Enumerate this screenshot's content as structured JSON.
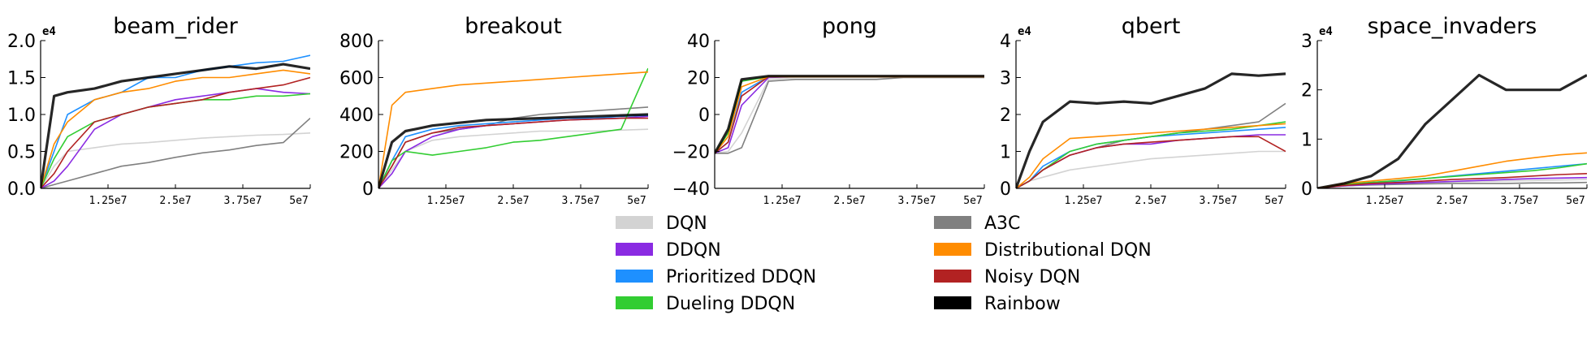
{
  "chart_data": {
    "type": "line",
    "xlim": [
      0,
      50000000
    ],
    "x_tick_labels": [
      "1.25e7",
      "2.5e7",
      "3.75e7",
      "5e7"
    ],
    "x_tick_values": [
      12500000,
      25000000,
      37500000,
      50000000
    ],
    "grid": false,
    "legend": {
      "position": "bottom-center",
      "columns": 2,
      "entries": [
        {
          "name": "DQN",
          "color": "#d3d3d3"
        },
        {
          "name": "A3C",
          "color": "#808080"
        },
        {
          "name": "DDQN",
          "color": "#8a2be2"
        },
        {
          "name": "Distributional DQN",
          "color": "#ff8c00"
        },
        {
          "name": "Prioritized DDQN",
          "color": "#1e90ff"
        },
        {
          "name": "Noisy DQN",
          "color": "#b22222"
        },
        {
          "name": "Dueling DDQN",
          "color": "#32cd32"
        },
        {
          "name": "Rainbow",
          "color": "#000000"
        }
      ]
    },
    "x_points": [
      0,
      2500000,
      5000000,
      10000000,
      15000000,
      20000000,
      25000000,
      30000000,
      35000000,
      40000000,
      45000000,
      50000000
    ],
    "panels": [
      {
        "title": "beam_rider",
        "multiplier": "e4",
        "ylim": [
          0,
          2.0
        ],
        "y_tick_labels": [
          "0.0",
          "0.5",
          "1.0",
          "1.5",
          "2.0"
        ],
        "y_tick_values": [
          0,
          0.5,
          1.0,
          1.5,
          2.0
        ],
        "series": [
          {
            "name": "DQN",
            "values": [
              0,
              0.3,
              0.5,
              0.55,
              0.6,
              0.62,
              0.65,
              0.68,
              0.7,
              0.72,
              0.73,
              0.75
            ]
          },
          {
            "name": "A3C",
            "values": [
              0,
              0.05,
              0.1,
              0.2,
              0.3,
              0.35,
              0.42,
              0.48,
              0.52,
              0.58,
              0.62,
              0.95
            ]
          },
          {
            "name": "DDQN",
            "values": [
              0,
              0.1,
              0.3,
              0.8,
              1.0,
              1.1,
              1.2,
              1.25,
              1.3,
              1.35,
              1.3,
              1.28
            ]
          },
          {
            "name": "Distributional DQN",
            "values": [
              0,
              0.6,
              0.9,
              1.2,
              1.3,
              1.35,
              1.45,
              1.5,
              1.5,
              1.55,
              1.6,
              1.55
            ]
          },
          {
            "name": "Prioritized DDQN",
            "values": [
              0,
              0.5,
              1.0,
              1.2,
              1.3,
              1.5,
              1.5,
              1.6,
              1.65,
              1.7,
              1.72,
              1.8
            ]
          },
          {
            "name": "Noisy DQN",
            "values": [
              0,
              0.2,
              0.5,
              0.9,
              1.0,
              1.1,
              1.15,
              1.2,
              1.3,
              1.35,
              1.4,
              1.5
            ]
          },
          {
            "name": "Dueling DDQN",
            "values": [
              0,
              0.4,
              0.7,
              0.9,
              1.0,
              1.1,
              1.15,
              1.2,
              1.2,
              1.25,
              1.25,
              1.28
            ]
          },
          {
            "name": "Rainbow",
            "values": [
              0,
              1.25,
              1.3,
              1.35,
              1.45,
              1.5,
              1.55,
              1.6,
              1.65,
              1.62,
              1.68,
              1.62
            ]
          }
        ]
      },
      {
        "title": "breakout",
        "multiplier": "",
        "ylim": [
          0,
          800
        ],
        "y_tick_labels": [
          "0",
          "200",
          "400",
          "600",
          "800"
        ],
        "y_tick_values": [
          0,
          200,
          400,
          600,
          800
        ],
        "series": [
          {
            "name": "DQN",
            "values": [
              0,
              100,
              200,
              260,
              280,
              290,
              300,
              310,
              310,
              310,
              315,
              320
            ]
          },
          {
            "name": "A3C",
            "values": [
              0,
              120,
              250,
              300,
              320,
              340,
              380,
              400,
              410,
              420,
              430,
              440
            ]
          },
          {
            "name": "DDQN",
            "values": [
              0,
              80,
              200,
              280,
              320,
              340,
              350,
              360,
              370,
              375,
              380,
              390
            ]
          },
          {
            "name": "Distributional DQN",
            "values": [
              0,
              450,
              520,
              540,
              560,
              570,
              580,
              590,
              600,
              610,
              620,
              630
            ]
          },
          {
            "name": "Prioritized DDQN",
            "values": [
              0,
              150,
              280,
              320,
              340,
              350,
              360,
              370,
              380,
              380,
              390,
              395
            ]
          },
          {
            "name": "Noisy DQN",
            "values": [
              0,
              120,
              250,
              300,
              330,
              340,
              350,
              360,
              370,
              375,
              380,
              380
            ]
          },
          {
            "name": "Dueling DDQN",
            "values": [
              0,
              150,
              200,
              180,
              200,
              220,
              250,
              260,
              280,
              300,
              320,
              650
            ]
          },
          {
            "name": "Rainbow",
            "values": [
              0,
              250,
              310,
              340,
              355,
              370,
              375,
              380,
              385,
              390,
              395,
              400
            ]
          }
        ]
      },
      {
        "title": "pong",
        "multiplier": "",
        "ylim": [
          -40,
          40
        ],
        "y_tick_labels": [
          "−40",
          "−20",
          "0",
          "20",
          "40"
        ],
        "y_tick_values": [
          -40,
          -20,
          0,
          20,
          40
        ],
        "series": [
          {
            "name": "DQN",
            "values": [
              -21,
              -20,
              -10,
              19,
              20,
              20,
              20,
              20,
              20,
              20,
              20,
              20
            ]
          },
          {
            "name": "A3C",
            "values": [
              -21,
              -21,
              -18,
              18,
              19,
              19,
              19,
              19,
              20,
              20,
              20,
              20
            ]
          },
          {
            "name": "DDQN",
            "values": [
              -21,
              -18,
              5,
              20,
              20.5,
              20.5,
              20.5,
              20.5,
              20.5,
              20.5,
              20.5,
              20.5
            ]
          },
          {
            "name": "Distributional DQN",
            "values": [
              -21,
              -12,
              15,
              20.5,
              20.5,
              20.5,
              20.5,
              20.5,
              20.5,
              20.5,
              20.5,
              20.5
            ]
          },
          {
            "name": "Prioritized DDQN",
            "values": [
              -21,
              -15,
              12,
              20.5,
              20.5,
              20.5,
              20.5,
              20.5,
              20.5,
              20.5,
              20.5,
              20.5
            ]
          },
          {
            "name": "Noisy DQN",
            "values": [
              -21,
              -15,
              10,
              20.5,
              20.5,
              20.5,
              20.5,
              20.5,
              20.5,
              20.5,
              20.5,
              20.5
            ]
          },
          {
            "name": "Dueling DDQN",
            "values": [
              -21,
              -10,
              18,
              20.5,
              20.5,
              20.5,
              20.5,
              20.5,
              20.5,
              20.5,
              20.5,
              20.5
            ]
          },
          {
            "name": "Rainbow",
            "values": [
              -21,
              -8,
              19,
              20.8,
              20.8,
              20.8,
              20.8,
              20.8,
              20.8,
              20.8,
              20.8,
              20.8
            ]
          }
        ]
      },
      {
        "title": "qbert",
        "multiplier": "e4",
        "ylim": [
          0,
          4
        ],
        "y_tick_labels": [
          "0",
          "1",
          "2",
          "3",
          "4"
        ],
        "y_tick_values": [
          0,
          1,
          2,
          3,
          4
        ],
        "series": [
          {
            "name": "DQN",
            "values": [
              0,
              0.2,
              0.3,
              0.5,
              0.6,
              0.7,
              0.8,
              0.85,
              0.9,
              0.95,
              1.0,
              1.0
            ]
          },
          {
            "name": "A3C",
            "values": [
              0,
              0.2,
              0.5,
              0.9,
              1.1,
              1.3,
              1.4,
              1.5,
              1.6,
              1.7,
              1.8,
              2.3
            ]
          },
          {
            "name": "DDQN",
            "values": [
              0,
              0.2,
              0.5,
              0.9,
              1.1,
              1.2,
              1.2,
              1.3,
              1.35,
              1.4,
              1.45,
              1.45
            ]
          },
          {
            "name": "Distributional DQN",
            "values": [
              0,
              0.3,
              0.8,
              1.35,
              1.4,
              1.45,
              1.5,
              1.55,
              1.6,
              1.65,
              1.7,
              1.75
            ]
          },
          {
            "name": "Prioritized DDQN",
            "values": [
              0,
              0.2,
              0.6,
              1.0,
              1.2,
              1.3,
              1.4,
              1.45,
              1.5,
              1.55,
              1.6,
              1.65
            ]
          },
          {
            "name": "Noisy DQN",
            "values": [
              0,
              0.2,
              0.5,
              0.9,
              1.1,
              1.2,
              1.25,
              1.3,
              1.35,
              1.4,
              1.4,
              1.0
            ]
          },
          {
            "name": "Dueling DDQN",
            "values": [
              0,
              0.2,
              0.5,
              1.0,
              1.2,
              1.3,
              1.4,
              1.5,
              1.55,
              1.6,
              1.7,
              1.8
            ]
          },
          {
            "name": "Rainbow",
            "values": [
              0,
              1.0,
              1.8,
              2.35,
              2.3,
              2.35,
              2.3,
              2.5,
              2.7,
              3.1,
              3.05,
              3.1
            ]
          }
        ]
      },
      {
        "title": "space_invaders",
        "multiplier": "e4",
        "ylim": [
          0,
          3
        ],
        "y_tick_labels": [
          "0",
          "1",
          "2",
          "3"
        ],
        "y_tick_values": [
          0,
          1,
          2,
          3
        ],
        "series": [
          {
            "name": "DQN",
            "values": [
              0,
              0.03,
              0.05,
              0.08,
              0.1,
              0.12,
              0.13,
              0.14,
              0.15,
              0.16,
              0.17,
              0.18
            ]
          },
          {
            "name": "A3C",
            "values": [
              0,
              0.03,
              0.05,
              0.07,
              0.08,
              0.09,
              0.1,
              0.1,
              0.1,
              0.11,
              0.11,
              0.12
            ]
          },
          {
            "name": "DDQN",
            "values": [
              0,
              0.03,
              0.05,
              0.08,
              0.1,
              0.12,
              0.14,
              0.16,
              0.18,
              0.2,
              0.21,
              0.22
            ]
          },
          {
            "name": "Distributional DQN",
            "values": [
              0,
              0.05,
              0.1,
              0.15,
              0.2,
              0.25,
              0.35,
              0.45,
              0.55,
              0.62,
              0.68,
              0.72
            ]
          },
          {
            "name": "Prioritized DDQN",
            "values": [
              0,
              0.04,
              0.08,
              0.12,
              0.15,
              0.2,
              0.25,
              0.3,
              0.35,
              0.4,
              0.45,
              0.5
            ]
          },
          {
            "name": "Noisy DQN",
            "values": [
              0,
              0.03,
              0.06,
              0.1,
              0.12,
              0.15,
              0.18,
              0.2,
              0.22,
              0.25,
              0.28,
              0.3
            ]
          },
          {
            "name": "Dueling DDQN",
            "values": [
              0,
              0.04,
              0.08,
              0.12,
              0.16,
              0.2,
              0.24,
              0.28,
              0.32,
              0.36,
              0.42,
              0.5
            ]
          },
          {
            "name": "Rainbow",
            "values": [
              0,
              0.05,
              0.1,
              0.25,
              0.6,
              1.3,
              1.8,
              2.3,
              2.0,
              2.0,
              2.0,
              2.3
            ]
          }
        ]
      }
    ]
  }
}
